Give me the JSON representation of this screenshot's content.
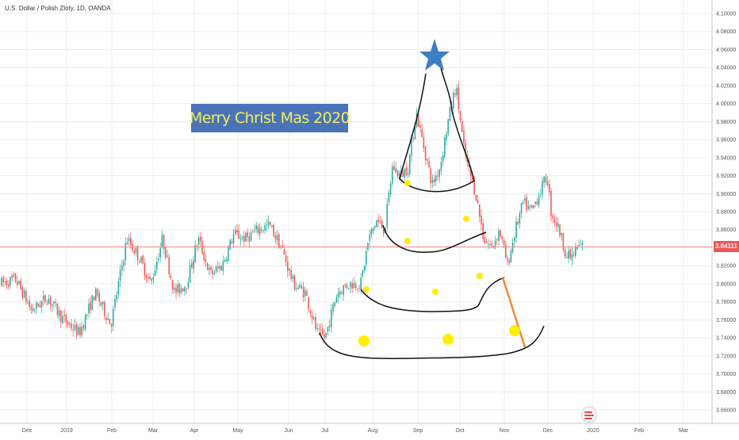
{
  "chart_data": {
    "type": "candlestick",
    "symbol_label": "U.S. Dollar / Polish Zloty, 1D, OANDA",
    "annotation": "Merry Christ Mas 2020",
    "current_price": "3.84111",
    "y_axis": {
      "ylim": [
        3.65,
        4.105
      ],
      "ticks": [
        "4.10000",
        "4.08000",
        "4.06000",
        "4.04000",
        "4.02000",
        "4.00000",
        "3.98000",
        "3.96000",
        "3.94000",
        "3.92000",
        "3.90000",
        "3.88000",
        "3.86000",
        "3.84000",
        "3.82000",
        "3.80000",
        "3.78000",
        "3.76000",
        "3.74000",
        "3.72000",
        "3.70000",
        "3.68000",
        "3.66000"
      ]
    },
    "x_axis": {
      "labels": [
        "Dec",
        "2019",
        "Feb",
        "Mar",
        "Apr",
        "May",
        "Jun",
        "Jul",
        "Aug",
        "Sep",
        "Oct",
        "Nov",
        "Dec",
        "2020",
        "Feb",
        "Mar"
      ]
    },
    "colors": {
      "up": "#26a69a",
      "down": "#ef5350",
      "price_line": "#f28b8b",
      "star": "#3d7fc4",
      "ornament": "#ffee00",
      "tree_line": "#111111",
      "trunk_line": "#f08a3c"
    },
    "series_path": [
      [
        0,
        3.8
      ],
      [
        20,
        3.805
      ],
      [
        40,
        3.77
      ],
      [
        60,
        3.785
      ],
      [
        80,
        3.76
      ],
      [
        100,
        3.745
      ],
      [
        120,
        3.79
      ],
      [
        140,
        3.755
      ],
      [
        160,
        3.85
      ],
      [
        175,
        3.83
      ],
      [
        190,
        3.8
      ],
      [
        205,
        3.85
      ],
      [
        220,
        3.79
      ],
      [
        235,
        3.8
      ],
      [
        250,
        3.85
      ],
      [
        265,
        3.81
      ],
      [
        280,
        3.82
      ],
      [
        295,
        3.855
      ],
      [
        310,
        3.85
      ],
      [
        325,
        3.86
      ],
      [
        340,
        3.865
      ],
      [
        355,
        3.84
      ],
      [
        370,
        3.8
      ],
      [
        385,
        3.79
      ],
      [
        400,
        3.745
      ],
      [
        410,
        3.74
      ],
      [
        425,
        3.79
      ],
      [
        440,
        3.8
      ],
      [
        455,
        3.8
      ],
      [
        465,
        3.85
      ],
      [
        475,
        3.87
      ],
      [
        485,
        3.86
      ],
      [
        495,
        3.93
      ],
      [
        505,
        3.92
      ],
      [
        515,
        3.93
      ],
      [
        525,
        3.99
      ],
      [
        535,
        3.95
      ],
      [
        545,
        3.91
      ],
      [
        555,
        3.93
      ],
      [
        565,
        3.98
      ],
      [
        575,
        4.02
      ],
      [
        585,
        3.95
      ],
      [
        590,
        3.93
      ],
      [
        600,
        3.9
      ],
      [
        610,
        3.85
      ],
      [
        620,
        3.84
      ],
      [
        630,
        3.86
      ],
      [
        640,
        3.82
      ],
      [
        650,
        3.86
      ],
      [
        660,
        3.89
      ],
      [
        670,
        3.88
      ],
      [
        680,
        3.9
      ],
      [
        690,
        3.92
      ],
      [
        695,
        3.88
      ],
      [
        705,
        3.86
      ],
      [
        715,
        3.83
      ],
      [
        722,
        3.83
      ],
      [
        728,
        3.84
      ],
      [
        735,
        3.842
      ]
    ]
  }
}
